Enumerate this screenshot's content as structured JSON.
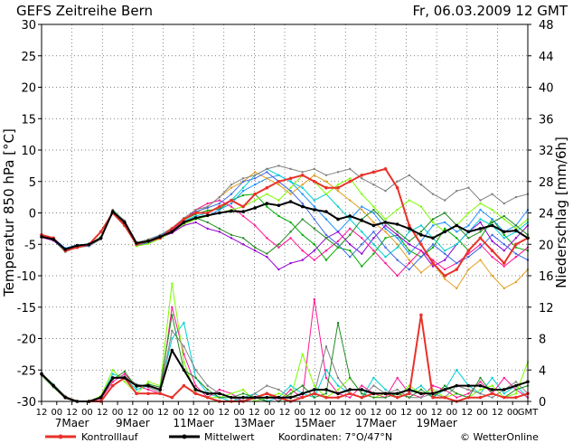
{
  "chart_data": {
    "type": "line",
    "title": "GEFS Zeitreihe Bern",
    "date_label": "Fr, 06.03.2009 12 GMT",
    "ylabel_left": "Temperatur 850 hPa [°C]",
    "ylabel_right": "Niederschlag [mm/6h]",
    "ylim_left": [
      -30,
      30
    ],
    "ylim_right": [
      0,
      48
    ],
    "y_ticks_left": [
      "30",
      "25",
      "20",
      "15",
      "10",
      "5",
      "0",
      "-5",
      "-10",
      "-15",
      "-20",
      "-25",
      "-30"
    ],
    "y_ticks_right": [
      "48",
      "44",
      "40",
      "36",
      "32",
      "28",
      "24",
      "20",
      "16",
      "12",
      "8",
      "4",
      "0"
    ],
    "hour_ticks": [
      "12",
      "00",
      "12",
      "00",
      "12",
      "00",
      "12",
      "00",
      "12",
      "00",
      "12",
      "00",
      "12",
      "00",
      "12",
      "00",
      "12",
      "00",
      "12",
      "00",
      "12",
      "00",
      "12",
      "00",
      "12",
      "00",
      "12",
      "00",
      "12",
      "00",
      "12",
      "00",
      "GMT"
    ],
    "day_labels": [
      "7Maer",
      "9Maer",
      "11Maer",
      "13Maer",
      "15Maer",
      "17Maer",
      "19Maer"
    ],
    "legend": {
      "control": "Kontrolllauf",
      "mean": "Mittelwert",
      "coords": "Koordinaten: 7°O/47°N",
      "credit": "© WetterOnline"
    },
    "colors": {
      "control": "#e8322a",
      "mean": "#000000",
      "grid": "#555555",
      "members": [
        "#00aa00",
        "#1e90ff",
        "#9400d3",
        "#e0a020",
        "#00ced1",
        "#ff1493",
        "#7cfc00",
        "#808080",
        "#228b22",
        "#4169e1",
        "#c8a000",
        "#00bfff",
        "#ba55d3",
        "#32cd32",
        "#ff8c00",
        "#20b2aa",
        "#6a5acd",
        "#adff2f",
        "#8b4513",
        "#00fa9a"
      ]
    },
    "temp_control": [
      -3.5,
      -4,
      -6,
      -5.5,
      -5,
      -3,
      0,
      -2,
      -5,
      -4.5,
      -4,
      -2.5,
      -1,
      0,
      0,
      1,
      2,
      1,
      3,
      4,
      5,
      5.5,
      6,
      5,
      4,
      4,
      5,
      6,
      6.5,
      7,
      4,
      -2,
      -5,
      -8,
      -10,
      -9,
      -6,
      -4,
      -6,
      -8,
      -5,
      -4
    ],
    "temp_mean": [
      -3.8,
      -4.2,
      -5.8,
      -5.2,
      -5.0,
      -4.0,
      0.2,
      -1.5,
      -4.8,
      -4.5,
      -3.8,
      -3.0,
      -1.5,
      -0.8,
      -0.4,
      0.0,
      0.3,
      0.2,
      0.8,
      1.5,
      1.2,
      1.8,
      1.0,
      0.5,
      0.2,
      -1.0,
      -0.5,
      -1.2,
      -2.0,
      -1.5,
      -1.8,
      -2.5,
      -3.5,
      -4.0,
      -3.0,
      -2.0,
      -3.0,
      -2.5,
      -2.0,
      -3.0,
      -2.8,
      -4.0
    ],
    "temp_members": [
      [
        -3.8,
        -4.3,
        -6.2,
        -5.4,
        -5.2,
        -4.2,
        0.5,
        -1.3,
        -5,
        -4.6,
        -3.8,
        -2.8,
        -1.1,
        -0.2,
        0.4,
        0.6,
        2.0,
        2.8,
        3.0,
        1.0,
        -0.5,
        -1.5,
        -3.5,
        -5.0,
        -7.5,
        -5.5,
        -6.0,
        -8.5,
        -6.5,
        -4.0,
        -3.5,
        -6.0,
        -7.0,
        -5.5,
        -2.5,
        -4.0,
        -6.0,
        -4.0,
        -1.0,
        -3.5,
        -5.5,
        -6.0
      ],
      [
        -3.6,
        -4.0,
        -5.6,
        -5.1,
        -5.0,
        -3.8,
        0.0,
        -1.6,
        -4.8,
        -4.4,
        -3.6,
        -2.5,
        -1.5,
        -1.0,
        -0.5,
        0.5,
        1.5,
        3.5,
        4.5,
        5.5,
        6.0,
        5.0,
        3.0,
        1.0,
        -1.0,
        -3.0,
        -1.0,
        1.0,
        0.0,
        -2.5,
        -4.0,
        -6.5,
        -4.5,
        -2.0,
        -1.5,
        -3.0,
        -2.0,
        0.5,
        -1.0,
        -3.0,
        -2.0,
        0.5
      ],
      [
        -3.9,
        -4.4,
        -6.0,
        -5.3,
        -5.3,
        -4.1,
        0.2,
        -1.7,
        -5.2,
        -4.8,
        -4.0,
        -3.2,
        -2.0,
        -1.5,
        -2.5,
        -3.0,
        -4.0,
        -5.0,
        -6.0,
        -7.0,
        -9.0,
        -8.0,
        -7.5,
        -6.0,
        -4.0,
        -3.0,
        -5.0,
        -6.5,
        -4.0,
        -2.0,
        -3.5,
        -5.0,
        -6.0,
        -8.5,
        -7.5,
        -5.0,
        -3.0,
        -1.5,
        -4.5,
        -6.0,
        -4.0,
        -2.0
      ],
      [
        -3.7,
        -4.1,
        -5.9,
        -5.2,
        -5.1,
        -4.0,
        0.3,
        -1.4,
        -4.9,
        -4.3,
        -3.9,
        -2.6,
        -1.0,
        0.0,
        1.0,
        2.5,
        4.0,
        5.0,
        6.5,
        5.5,
        4.5,
        3.0,
        4.5,
        6.0,
        5.0,
        3.5,
        2.0,
        0.5,
        -1.5,
        -3.0,
        -5.0,
        -7.5,
        -9.5,
        -8.0,
        -10.5,
        -12.0,
        -9.0,
        -7.5,
        -10.0,
        -12.0,
        -11.0,
        -9.0
      ],
      [
        -3.8,
        -4.2,
        -6.1,
        -5.5,
        -5.0,
        -3.9,
        0.1,
        -1.5,
        -5.1,
        -4.7,
        -3.7,
        -2.9,
        -1.3,
        -0.5,
        0.0,
        1.0,
        2.0,
        4.0,
        6.0,
        7.0,
        6.0,
        5.0,
        4.0,
        2.0,
        3.0,
        1.0,
        -1.0,
        -3.0,
        -5.0,
        -7.0,
        -5.5,
        -3.0,
        -2.0,
        -4.0,
        -6.0,
        -5.0,
        -3.0,
        -1.0,
        -2.0,
        -4.0,
        -3.0,
        -1.5
      ],
      [
        -3.9,
        -4.3,
        -5.8,
        -5.3,
        -5.2,
        -4.1,
        0.4,
        -1.6,
        -5.0,
        -4.5,
        -3.9,
        -2.7,
        -1.2,
        0.5,
        1.5,
        2.0,
        1.0,
        -0.5,
        -2.0,
        -4.0,
        -5.5,
        -4.0,
        -6.0,
        -7.5,
        -6.0,
        -4.5,
        -2.5,
        -4.0,
        -6.0,
        -8.0,
        -10.0,
        -8.0,
        -6.0,
        -7.5,
        -9.0,
        -8.0,
        -6.5,
        -5.0,
        -7.0,
        -8.5,
        -7.0,
        -5.5
      ],
      [
        -3.7,
        -4.0,
        -6.0,
        -5.4,
        -5.1,
        -3.8,
        0.0,
        -1.8,
        -5.3,
        -4.9,
        -4.1,
        -3.0,
        -1.8,
        -1.0,
        -0.5,
        0.0,
        0.5,
        1.0,
        2.0,
        3.0,
        2.0,
        4.0,
        6.0,
        5.0,
        3.0,
        4.5,
        5.5,
        3.0,
        1.0,
        -1.0,
        0.5,
        2.0,
        1.0,
        -1.5,
        -3.0,
        -2.0,
        0.0,
        1.5,
        0.5,
        -1.0,
        -2.5,
        -1.0
      ],
      [
        -3.8,
        -4.1,
        -6.2,
        -5.5,
        -5.3,
        -4.2,
        0.3,
        -1.2,
        -4.7,
        -4.2,
        -3.5,
        -2.4,
        -0.8,
        0.5,
        1.0,
        2.5,
        4.5,
        5.5,
        6.0,
        7.0,
        7.5,
        7.0,
        6.5,
        7.0,
        6.0,
        6.5,
        7.0,
        5.5,
        4.5,
        3.5,
        5.0,
        6.0,
        4.5,
        3.0,
        2.0,
        3.5,
        4.0,
        2.0,
        3.0,
        1.5,
        2.5,
        3.0
      ],
      [
        -3.6,
        -4.2,
        -5.7,
        -5.2,
        -5.0,
        -4.0,
        0.2,
        -1.5,
        -5.0,
        -4.6,
        -3.8,
        -2.8,
        -1.6,
        -0.8,
        -1.5,
        -2.5,
        -3.5,
        -4.0,
        -5.5,
        -6.5,
        -5.0,
        -3.0,
        -1.0,
        -2.5,
        -4.0,
        -5.5,
        -3.5,
        -1.0,
        0.5,
        -1.5,
        -3.0,
        -4.5,
        -3.0,
        -1.0,
        0.0,
        -2.0,
        -4.0,
        -3.0,
        -1.5,
        -0.5,
        -2.0,
        -3.5
      ],
      [
        -3.8,
        -4.3,
        -6.0,
        -5.4,
        -5.2,
        -3.9,
        0.1,
        -1.6,
        -4.9,
        -4.4,
        -3.8,
        -2.5,
        -1.0,
        0.2,
        0.8,
        1.5,
        3.0,
        5.0,
        5.5,
        6.5,
        5.0,
        3.5,
        1.5,
        -1.0,
        -3.5,
        -5.0,
        -7.0,
        -5.0,
        -3.0,
        -5.5,
        -7.5,
        -9.0,
        -7.0,
        -5.0,
        -6.5,
        -8.0,
        -7.0,
        -5.5,
        -3.5,
        -5.0,
        -6.5,
        -7.5
      ]
    ],
    "precip_control": [
      3.5,
      2,
      0.5,
      0,
      0,
      0,
      2,
      3,
      1,
      1,
      1,
      0.5,
      2,
      1,
      0.5,
      0,
      0,
      0,
      0.5,
      1,
      0.5,
      0,
      0.5,
      1,
      0.5,
      0.5,
      1,
      0.5,
      1,
      1,
      0.5,
      1,
      11,
      0.5,
      0.5,
      0,
      0.5,
      0.5,
      1,
      0.5,
      0.5,
      1
    ],
    "precip_mean": [
      3.5,
      2,
      0.5,
      0,
      0,
      0.5,
      3,
      3,
      2,
      2,
      1.5,
      6.5,
      4,
      1.5,
      1,
      1,
      0.5,
      0.5,
      0.5,
      0.5,
      0.5,
      0.5,
      1,
      1.5,
      1.5,
      1,
      1.5,
      1.5,
      1,
      1,
      1,
      1.5,
      1,
      1,
      1.5,
      2,
      2,
      2,
      1.5,
      1.5,
      2,
      2.5
    ],
    "precip_members": [
      [
        3.5,
        2.2,
        0.6,
        0,
        0,
        0.5,
        3.5,
        3,
        1.5,
        2,
        1.5,
        8,
        10,
        3,
        1,
        0.5,
        0,
        0.5,
        1,
        0,
        0.5,
        2,
        1,
        0.5,
        4,
        2,
        1,
        0.5,
        3,
        1.5,
        0.5,
        1,
        2,
        0.5,
        1.5,
        4,
        2,
        1,
        3,
        1,
        2,
        0.5
      ],
      [
        3.4,
        1.9,
        0.4,
        0,
        0,
        0.3,
        2.5,
        3.5,
        2,
        1.5,
        1,
        12,
        6,
        2,
        0.5,
        1.5,
        1,
        0,
        0.5,
        1,
        0,
        1.5,
        0.5,
        13,
        3,
        1,
        0.5,
        2,
        1,
        0.5,
        3,
        1,
        0.5,
        2,
        1.5,
        0.5,
        1,
        2.5,
        1,
        3,
        1.5,
        0.5
      ],
      [
        3.5,
        2.0,
        0.5,
        0,
        0,
        0.7,
        4,
        2.5,
        1,
        2.5,
        2,
        15,
        5,
        1,
        0.5,
        0.5,
        1,
        1.5,
        0,
        0.5,
        1,
        0.5,
        6,
        2,
        0.5,
        1.5,
        3,
        1,
        0.5,
        1,
        0.5,
        2,
        1,
        1.5,
        0.5,
        1,
        0.5,
        1.5,
        2,
        0.5,
        1,
        5
      ],
      [
        3.6,
        2.1,
        0.7,
        0,
        0,
        0.4,
        3,
        3.2,
        2.2,
        1.8,
        1.2,
        9,
        7,
        4,
        2,
        1,
        0.5,
        0,
        1,
        2,
        1.5,
        0.5,
        0.5,
        1,
        7,
        3,
        1,
        0.5,
        2,
        1,
        1.5,
        0.5,
        0.5,
        1,
        0.5,
        2,
        1.5,
        1,
        0.5,
        1.5,
        2.5,
        1
      ],
      [
        3.3,
        1.8,
        0.4,
        0,
        0,
        0.6,
        2.8,
        3.8,
        1.8,
        2.2,
        1.8,
        11,
        4,
        3,
        1.5,
        0.5,
        0.5,
        1,
        0.5,
        0,
        0,
        1,
        2,
        0.5,
        1,
        10,
        3,
        1,
        0.5,
        0.5,
        1,
        0.5,
        1.5,
        0.5,
        2,
        1,
        0.5,
        3,
        1,
        0.5,
        1.5,
        2
      ]
    ]
  }
}
